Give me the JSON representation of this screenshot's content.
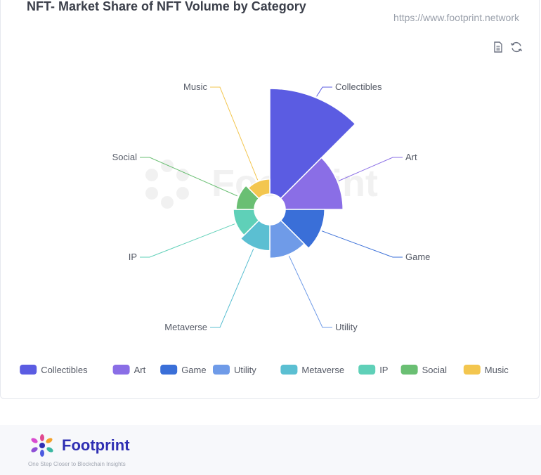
{
  "header": {
    "title": "NFT- Market Share of NFT Volume by Category",
    "source_url": "https://www.footprint.network"
  },
  "toolbar": {
    "data_view_icon": "document-icon",
    "refresh_icon": "refresh-icon"
  },
  "watermark": {
    "text": "Footprint"
  },
  "chart_data": {
    "type": "pie",
    "rose_type": "radius",
    "title": "NFT- Market Share of NFT Volume by Category",
    "categories": [
      "Collectibles",
      "Art",
      "Game",
      "Utility",
      "Metaverse",
      "IP",
      "Social",
      "Music"
    ],
    "values": [
      100,
      30,
      14,
      10,
      6,
      4,
      3,
      2
    ],
    "colors": [
      "#5b5ce2",
      "#8a6ee6",
      "#3a6fd8",
      "#6f9be8",
      "#5bbfd2",
      "#5fd0b8",
      "#6abf73",
      "#f3c64f"
    ],
    "legend_position": "bottom",
    "labels_shown": true
  },
  "footer": {
    "brand": "Footprint",
    "tagline": "One Step Closer to Blockchain Insights"
  }
}
